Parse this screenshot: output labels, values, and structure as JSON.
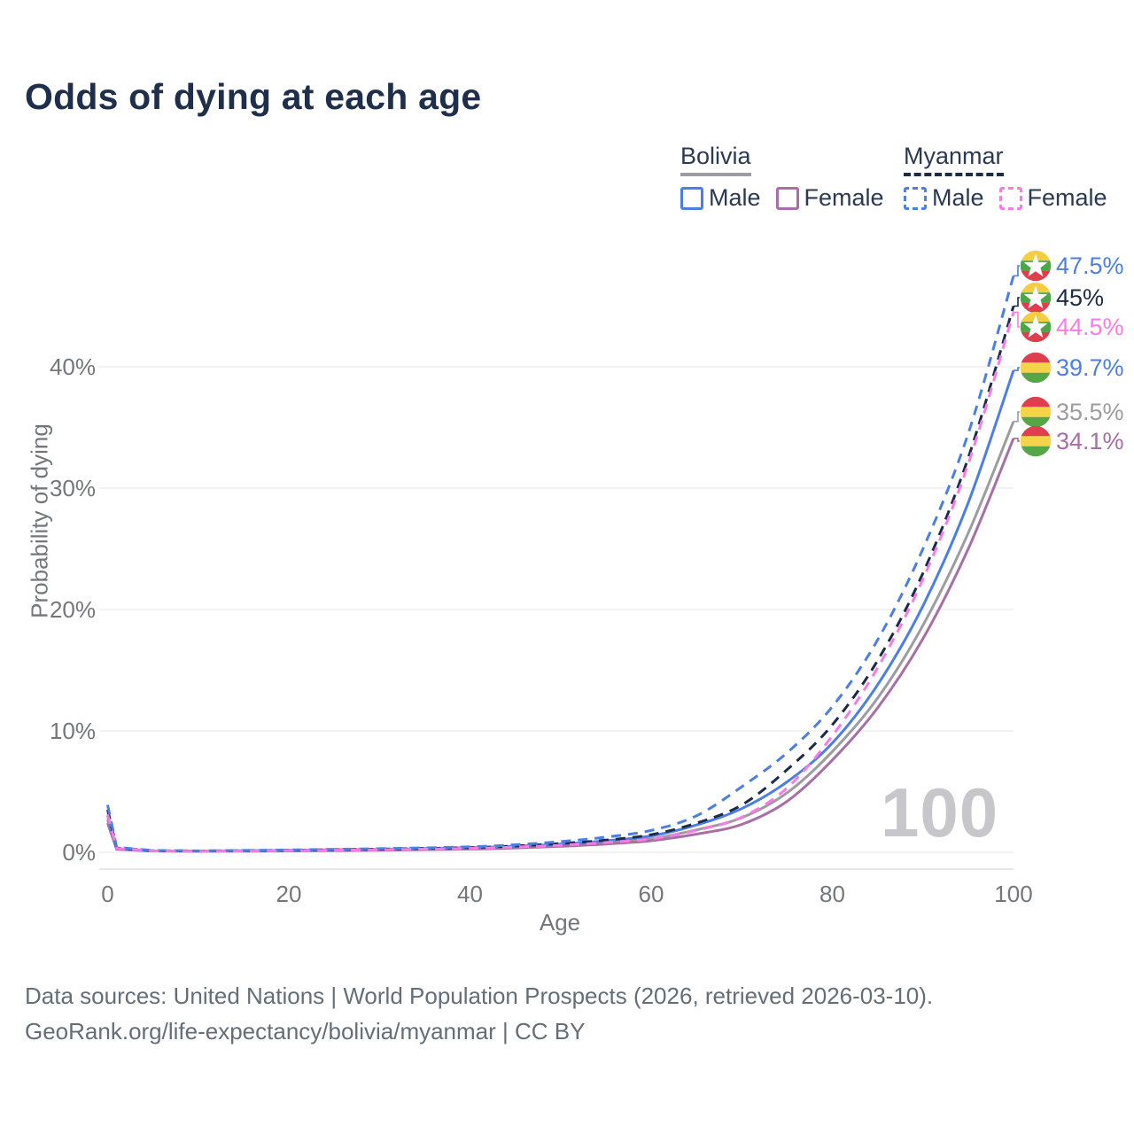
{
  "title": "Odds of dying at each age",
  "legend": {
    "groups": [
      {
        "title": "Bolivia",
        "line_style": "solid",
        "items": [
          {
            "label": "Male"
          },
          {
            "label": "Female"
          }
        ]
      },
      {
        "title": "Myanmar",
        "line_style": "dashed",
        "items": [
          {
            "label": "Male"
          },
          {
            "label": "Female"
          }
        ]
      }
    ]
  },
  "watermark_age": "100",
  "footer": {
    "line1": "Data sources: United Nations | World Population Prospects (2026, retrieved 2026-03-10).",
    "line2": "GeoRank.org/life-expectancy/bolivia/myanmar | CC BY"
  },
  "chart_data": {
    "type": "line",
    "title": "Odds of dying at each age",
    "xlabel": "Age",
    "ylabel": "Probability of dying",
    "xlim": [
      0,
      100
    ],
    "ylim_percent": [
      0,
      48
    ],
    "grid": "horizontal",
    "legend_position": "top-right",
    "xticks": [
      {
        "value": 0,
        "label": "0"
      },
      {
        "value": 20,
        "label": "20"
      },
      {
        "value": 40,
        "label": "40"
      },
      {
        "value": 60,
        "label": "60"
      },
      {
        "value": 80,
        "label": "80"
      },
      {
        "value": 100,
        "label": "100"
      }
    ],
    "yticks": [
      {
        "value": 0,
        "label": "0%"
      },
      {
        "value": 10,
        "label": "10%"
      },
      {
        "value": 20,
        "label": "20%"
      },
      {
        "value": 30,
        "label": "30%"
      },
      {
        "value": 40,
        "label": "40%"
      }
    ],
    "x_ages": [
      0,
      1,
      5,
      10,
      20,
      30,
      40,
      45,
      50,
      55,
      60,
      65,
      70,
      75,
      80,
      85,
      90,
      95,
      100
    ],
    "series": [
      {
        "name": "Myanmar Male",
        "country": "myanmar",
        "sex": "male",
        "dash": true,
        "color": "#4c7fe1",
        "end_label": "47.5%",
        "values_pct": [
          3.9,
          0.4,
          0.15,
          0.12,
          0.2,
          0.3,
          0.45,
          0.62,
          0.88,
          1.25,
          1.8,
          3.0,
          5.4,
          8.2,
          12.0,
          17.5,
          25.0,
          34.5,
          47.5
        ]
      },
      {
        "name": "Myanmar Both sexes",
        "country": "myanmar",
        "sex": "both",
        "dash": true,
        "color": "#1e2b47",
        "end_label": "45%",
        "values_pct": [
          3.5,
          0.36,
          0.13,
          0.11,
          0.17,
          0.26,
          0.39,
          0.52,
          0.72,
          1.0,
          1.45,
          2.4,
          3.9,
          6.8,
          10.5,
          15.8,
          23.0,
          32.5,
          45.0
        ]
      },
      {
        "name": "Myanmar Female",
        "country": "myanmar",
        "sex": "female",
        "dash": true,
        "color": "#fb7be5",
        "end_label": "44.5%",
        "values_pct": [
          3.1,
          0.32,
          0.12,
          0.09,
          0.14,
          0.21,
          0.32,
          0.43,
          0.58,
          0.8,
          1.1,
          1.8,
          2.9,
          5.3,
          9.6,
          15.2,
          22.5,
          32.0,
          44.5
        ]
      },
      {
        "name": "Bolivia Male",
        "country": "bolivia",
        "sex": "male",
        "dash": false,
        "color": "#4c7fe1",
        "end_label": "39.7%",
        "values_pct": [
          3.0,
          0.3,
          0.12,
          0.1,
          0.16,
          0.25,
          0.37,
          0.5,
          0.68,
          0.95,
          1.35,
          2.25,
          3.6,
          5.8,
          9.0,
          13.8,
          20.3,
          28.8,
          39.7
        ]
      },
      {
        "name": "Bolivia Both sexes",
        "country": "bolivia",
        "sex": "both",
        "dash": false,
        "color": "#9c9ca1",
        "end_label": "35.5%",
        "values_pct": [
          2.7,
          0.27,
          0.11,
          0.09,
          0.13,
          0.2,
          0.31,
          0.42,
          0.57,
          0.8,
          1.12,
          1.85,
          2.85,
          4.9,
          8.3,
          12.7,
          18.7,
          26.3,
          35.5
        ]
      },
      {
        "name": "Bolivia Female",
        "country": "bolivia",
        "sex": "female",
        "dash": false,
        "color": "#a76fa5",
        "end_label": "34.1%",
        "values_pct": [
          2.4,
          0.24,
          0.1,
          0.08,
          0.11,
          0.17,
          0.26,
          0.36,
          0.49,
          0.68,
          0.95,
          1.5,
          2.3,
          4.2,
          7.6,
          11.9,
          17.6,
          25.0,
          34.1
        ]
      }
    ],
    "flags": {
      "myanmar": {
        "stripes": [
          "#f6cc40",
          "#49a747",
          "#dd404c"
        ],
        "star": true
      },
      "bolivia": {
        "stripes": [
          "#dd404c",
          "#f6d44a",
          "#55a647"
        ],
        "star": false
      }
    }
  }
}
